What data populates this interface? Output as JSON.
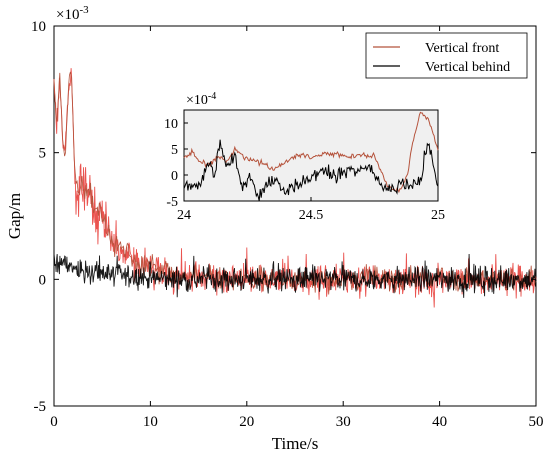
{
  "chart_data": [
    {
      "type": "line",
      "title": "",
      "xlabel": "Time/s",
      "ylabel": "Gap/m",
      "xlim": [
        0,
        50
      ],
      "ylim": [
        -5,
        10
      ],
      "y_multiplier": "×10",
      "y_multiplier_exp": "-3",
      "xticks": [
        "0",
        "10",
        "20",
        "30",
        "40",
        "50"
      ],
      "xtick_values": [
        0,
        10,
        20,
        30,
        40,
        50
      ],
      "yticks": [
        "-5",
        "0",
        "5",
        "10"
      ],
      "ytick_values": [
        -5,
        0,
        5,
        10
      ],
      "grid": false,
      "legend_position": "top-right",
      "series": [
        {
          "name": "Vertical front",
          "color": "#b5533c",
          "noisy_color": "#e8403c",
          "x": [
            0,
            0.3,
            0.6,
            0.9,
            1.2,
            1.5,
            1.8,
            2.1,
            2.4,
            3,
            4,
            5,
            6,
            7,
            8,
            9,
            10,
            11,
            12,
            13,
            15,
            20,
            25,
            30,
            35,
            40,
            45,
            50
          ],
          "values": [
            7.8,
            6.0,
            8.0,
            5.5,
            5.2,
            7.5,
            8.2,
            5.0,
            3.2,
            3.8,
            2.9,
            2.4,
            1.7,
            1.2,
            0.9,
            0.6,
            0.5,
            0.3,
            0.2,
            0.1,
            0.05,
            0.0,
            0.0,
            0.0,
            0.0,
            0.0,
            0.0,
            0.0
          ],
          "noise": [
            0.3,
            0.5,
            0.6,
            0.6,
            0.6,
            0.6,
            0.5,
            0.8,
            1.0,
            0.9,
            0.9,
            0.8,
            0.8,
            0.7,
            0.7,
            0.7,
            0.6,
            0.6,
            0.6,
            0.6,
            0.6,
            0.6,
            0.6,
            0.6,
            0.6,
            0.6,
            0.6,
            0.6
          ]
        },
        {
          "name": "Vertical behind",
          "color": "#000000",
          "x": [
            0,
            1,
            2,
            3,
            4,
            5,
            6,
            8,
            10,
            12,
            15,
            20,
            30,
            40,
            50
          ],
          "values": [
            0.6,
            0.6,
            0.5,
            0.4,
            0.3,
            0.25,
            0.2,
            0.1,
            0.05,
            0.0,
            0.0,
            0.0,
            0.0,
            0.0,
            0.0
          ],
          "noise": [
            0.5,
            0.5,
            0.5,
            0.5,
            0.5,
            0.5,
            0.5,
            0.5,
            0.5,
            0.5,
            0.5,
            0.5,
            0.5,
            0.5,
            0.5
          ]
        }
      ],
      "legend": [
        "Vertical front",
        "Vertical behind"
      ]
    },
    {
      "type": "line",
      "title": "",
      "xlabel": "",
      "ylabel": "",
      "xlim": [
        24,
        25
      ],
      "ylim": [
        -5,
        12.5
      ],
      "y_multiplier": "×10",
      "y_multiplier_exp": "-4",
      "xticks": [
        "24",
        "24.5",
        "25"
      ],
      "xtick_values": [
        24,
        24.5,
        25
      ],
      "yticks": [
        "-5",
        "0",
        "5",
        "10"
      ],
      "ytick_values": [
        -5,
        0,
        5,
        10
      ],
      "background": "#f0f0f0",
      "grid": false,
      "series": [
        {
          "name": "Vertical front",
          "color": "#b5533c",
          "x": [
            24,
            24.03,
            24.06,
            24.1,
            24.13,
            24.17,
            24.2,
            24.25,
            24.3,
            24.35,
            24.4,
            24.45,
            24.5,
            24.55,
            24.6,
            24.65,
            24.7,
            24.75,
            24.8,
            24.85,
            24.88,
            24.9,
            24.93,
            24.96,
            25
          ],
          "values": [
            3,
            4.5,
            2.5,
            2,
            3.5,
            2.5,
            5,
            3,
            2.5,
            1,
            2.5,
            4,
            3.5,
            4,
            4,
            3.5,
            4,
            3.5,
            -2,
            -3,
            0,
            6,
            12,
            11,
            5
          ]
        },
        {
          "name": "Vertical behind",
          "color": "#000000",
          "x": [
            24,
            24.03,
            24.06,
            24.08,
            24.1,
            24.12,
            24.14,
            24.17,
            24.2,
            24.23,
            24.26,
            24.28,
            24.3,
            24.33,
            24.36,
            24.4,
            24.45,
            24.5,
            24.55,
            24.6,
            24.65,
            24.7,
            24.73,
            24.76,
            24.8,
            24.83,
            24.86,
            24.9,
            24.93,
            24.96,
            25
          ],
          "values": [
            -2,
            -1.5,
            -2.5,
            0,
            3,
            -1,
            6,
            1,
            4,
            -2.5,
            0,
            -3,
            -3.5,
            -2,
            -1,
            -3,
            -2,
            -0.5,
            1,
            0,
            1,
            0.5,
            1.5,
            -1,
            -3,
            -2.5,
            -1.5,
            -2,
            -1,
            7,
            -2.5
          ]
        }
      ]
    }
  ]
}
